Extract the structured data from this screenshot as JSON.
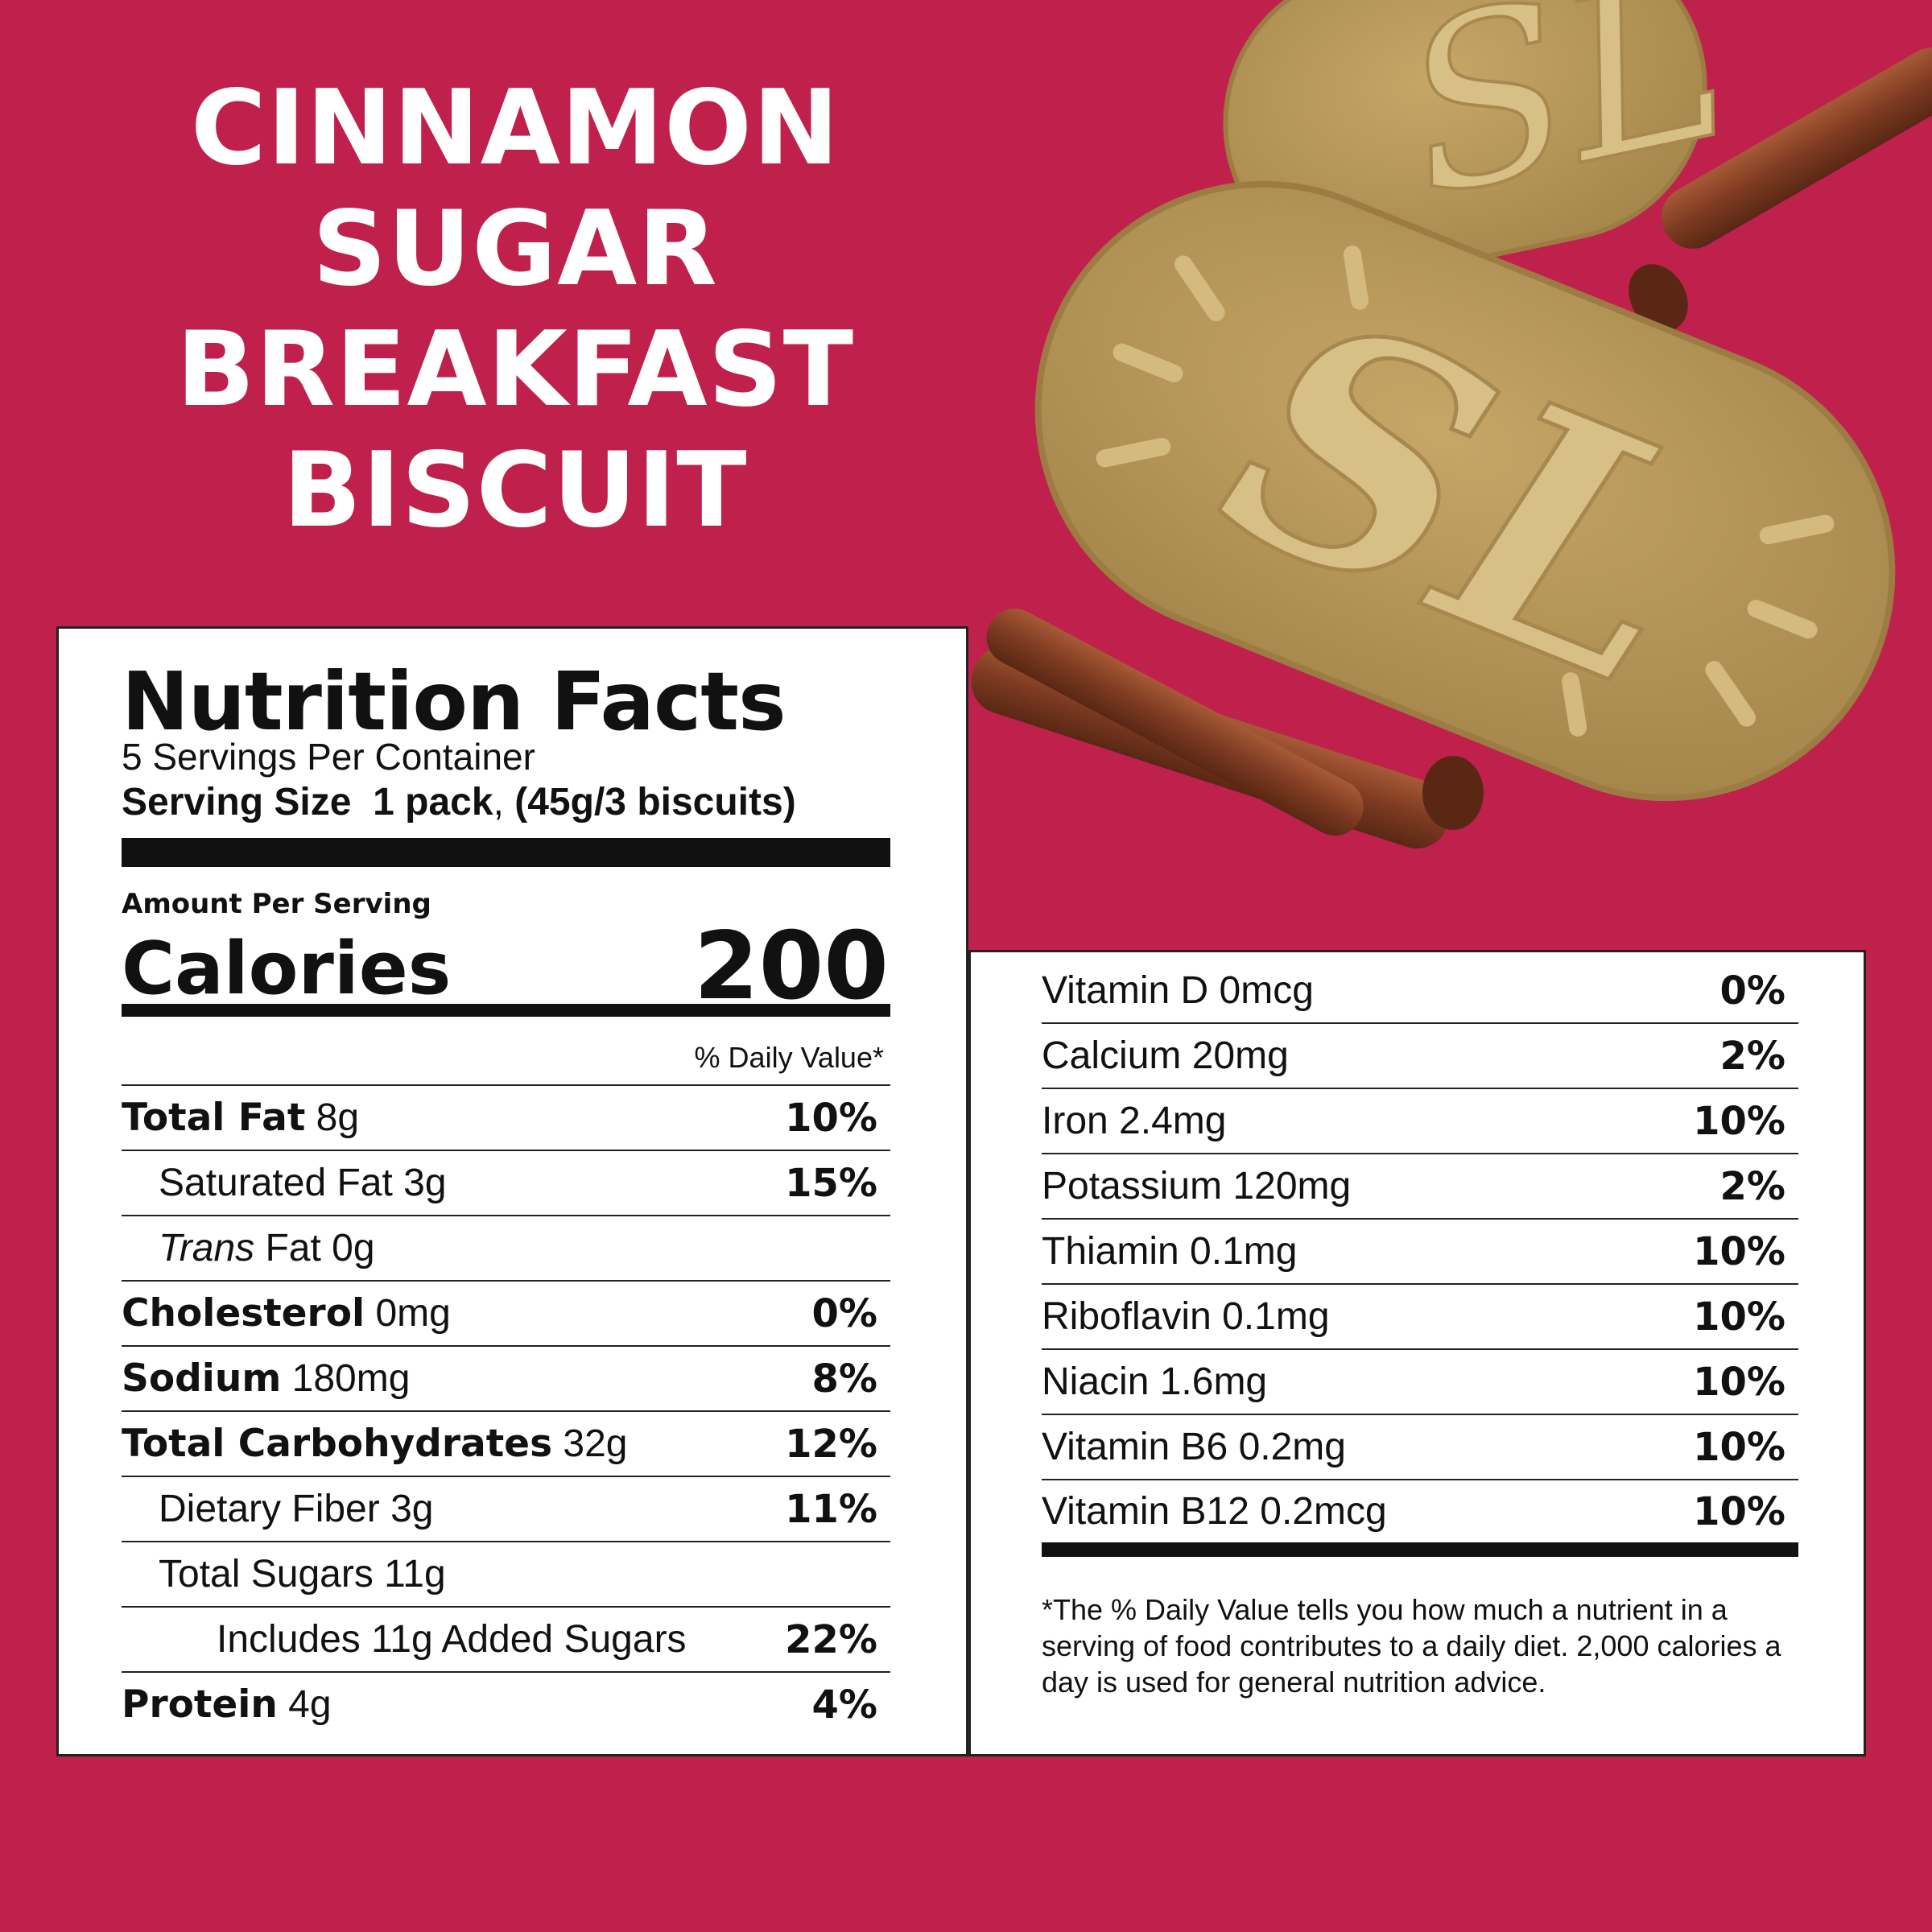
{
  "title_lines": [
    "CINNAMON",
    "SUGAR",
    "BREAKFAST",
    "BISCUIT"
  ],
  "nutrition": {
    "title": "Nutrition Facts",
    "servings_per_container": "5 Servings Per Container",
    "serving_size_label": "Serving Size",
    "serving_size_value": "1 pack",
    "serving_size_comma": ",",
    "serving_size_detail": "(45g/3 biscuits)",
    "amount_per_serving": "Amount Per Serving",
    "calories_label": "Calories",
    "calories_value": "200",
    "daily_value_header": "% Daily Value*",
    "rows": [
      {
        "bold": "Total Fat",
        "rest": " 8g",
        "pct": "10%"
      },
      {
        "bold": "",
        "rest": "Saturated Fat 3g",
        "pct": "15%"
      },
      {
        "italic": "Trans",
        "rest": " Fat 0g",
        "pct": ""
      },
      {
        "bold": "Cholesterol",
        "rest": " 0mg",
        "pct": "0%"
      },
      {
        "bold": "Sodium",
        "rest": " 180mg",
        "pct": "8%"
      },
      {
        "bold": "Total Carbohydrates",
        "rest": " 32g",
        "pct": "12%"
      },
      {
        "bold": "",
        "rest": "Dietary Fiber 3g",
        "pct": "11%"
      },
      {
        "bold": "",
        "rest": "Total Sugars 11g",
        "pct": ""
      },
      {
        "bold": "",
        "rest": "Includes 11g Added Sugars",
        "pct": "22%"
      },
      {
        "bold": "Protein",
        "rest": " 4g",
        "pct": "4%"
      }
    ],
    "vitamins": [
      {
        "label": "Vitamin D 0mcg",
        "pct": "0%"
      },
      {
        "label": "Calcium 20mg",
        "pct": "2%"
      },
      {
        "label": "Iron 2.4mg",
        "pct": "10%"
      },
      {
        "label": "Potassium 120mg",
        "pct": "2%"
      },
      {
        "label": "Thiamin 0.1mg",
        "pct": "10%"
      },
      {
        "label": "Riboflavin 0.1mg",
        "pct": "10%"
      },
      {
        "label": "Niacin 1.6mg",
        "pct": "10%"
      },
      {
        "label": "Vitamin B6 0.2mg",
        "pct": "10%"
      },
      {
        "label": "Vitamin B12 0.2mcg",
        "pct": "10%"
      }
    ],
    "footnote": "*The % Daily Value tells you how much a nutrient in a serving of food contributes to a daily diet. 2,000 calories a day is used for general nutrition advice."
  },
  "colors": {
    "background": "#c0214c",
    "biscuit": "#b99a5c",
    "cinnamon": "#7e3b22"
  }
}
